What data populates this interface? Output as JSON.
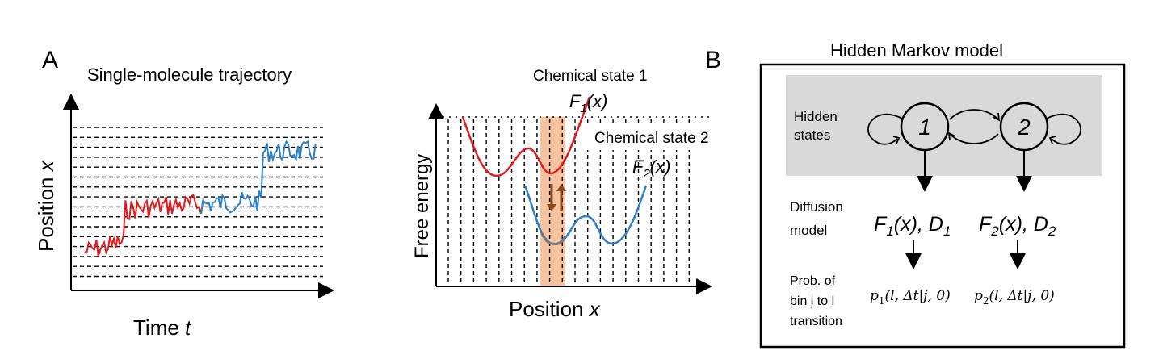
{
  "panel_a": {
    "letter": "A",
    "trajectory_title": "Single-molecule trajectory",
    "trajectory_ylabel": "Position",
    "trajectory_ylabel_var": "x",
    "trajectory_xlabel": "Time",
    "trajectory_xlabel_var": "t",
    "state1_label": "Chemical state 1",
    "state2_label": "Chemical state 2",
    "f1_label": "F",
    "f1_sub": "1",
    "f1_arg": "(x)",
    "f2_label": "F",
    "f2_sub": "2",
    "f2_arg": "(x)",
    "energy_ylabel": "Free energy",
    "energy_xlabel": "Position",
    "energy_xlabel_var": "x"
  },
  "panel_b": {
    "letter": "B",
    "title": "Hidden Markov model",
    "hidden_states_line1": "Hidden",
    "hidden_states_line2": "states",
    "state1_number": "1",
    "state2_number": "2",
    "diffusion_line1": "Diffusion",
    "diffusion_line2": "model",
    "model1_F": "F",
    "model1_F_sub": "1",
    "model1_rest": "(x), D",
    "model1_D_sub": "1",
    "model2_F": "F",
    "model2_F_sub": "2",
    "model2_rest": "(x), D",
    "model2_D_sub": "2",
    "prob_line1": "Prob. of",
    "prob_line2": "bin j to l",
    "prob_line3": "transition",
    "prob1_p": "p",
    "prob1_sub": "1",
    "prob1_args": "(l, Δt|j, 0)",
    "prob2_p": "p",
    "prob2_sub": "2",
    "prob2_args": "(l, Δt|j, 0)"
  },
  "colors": {
    "state1": "#e31a1c",
    "state2": "#2a7fc7",
    "overlap": "#7a7a7a",
    "highlight": "#f5b98e",
    "arrow_brown": "#8a4a1c",
    "hidden_bg": "#d9d9d9"
  }
}
